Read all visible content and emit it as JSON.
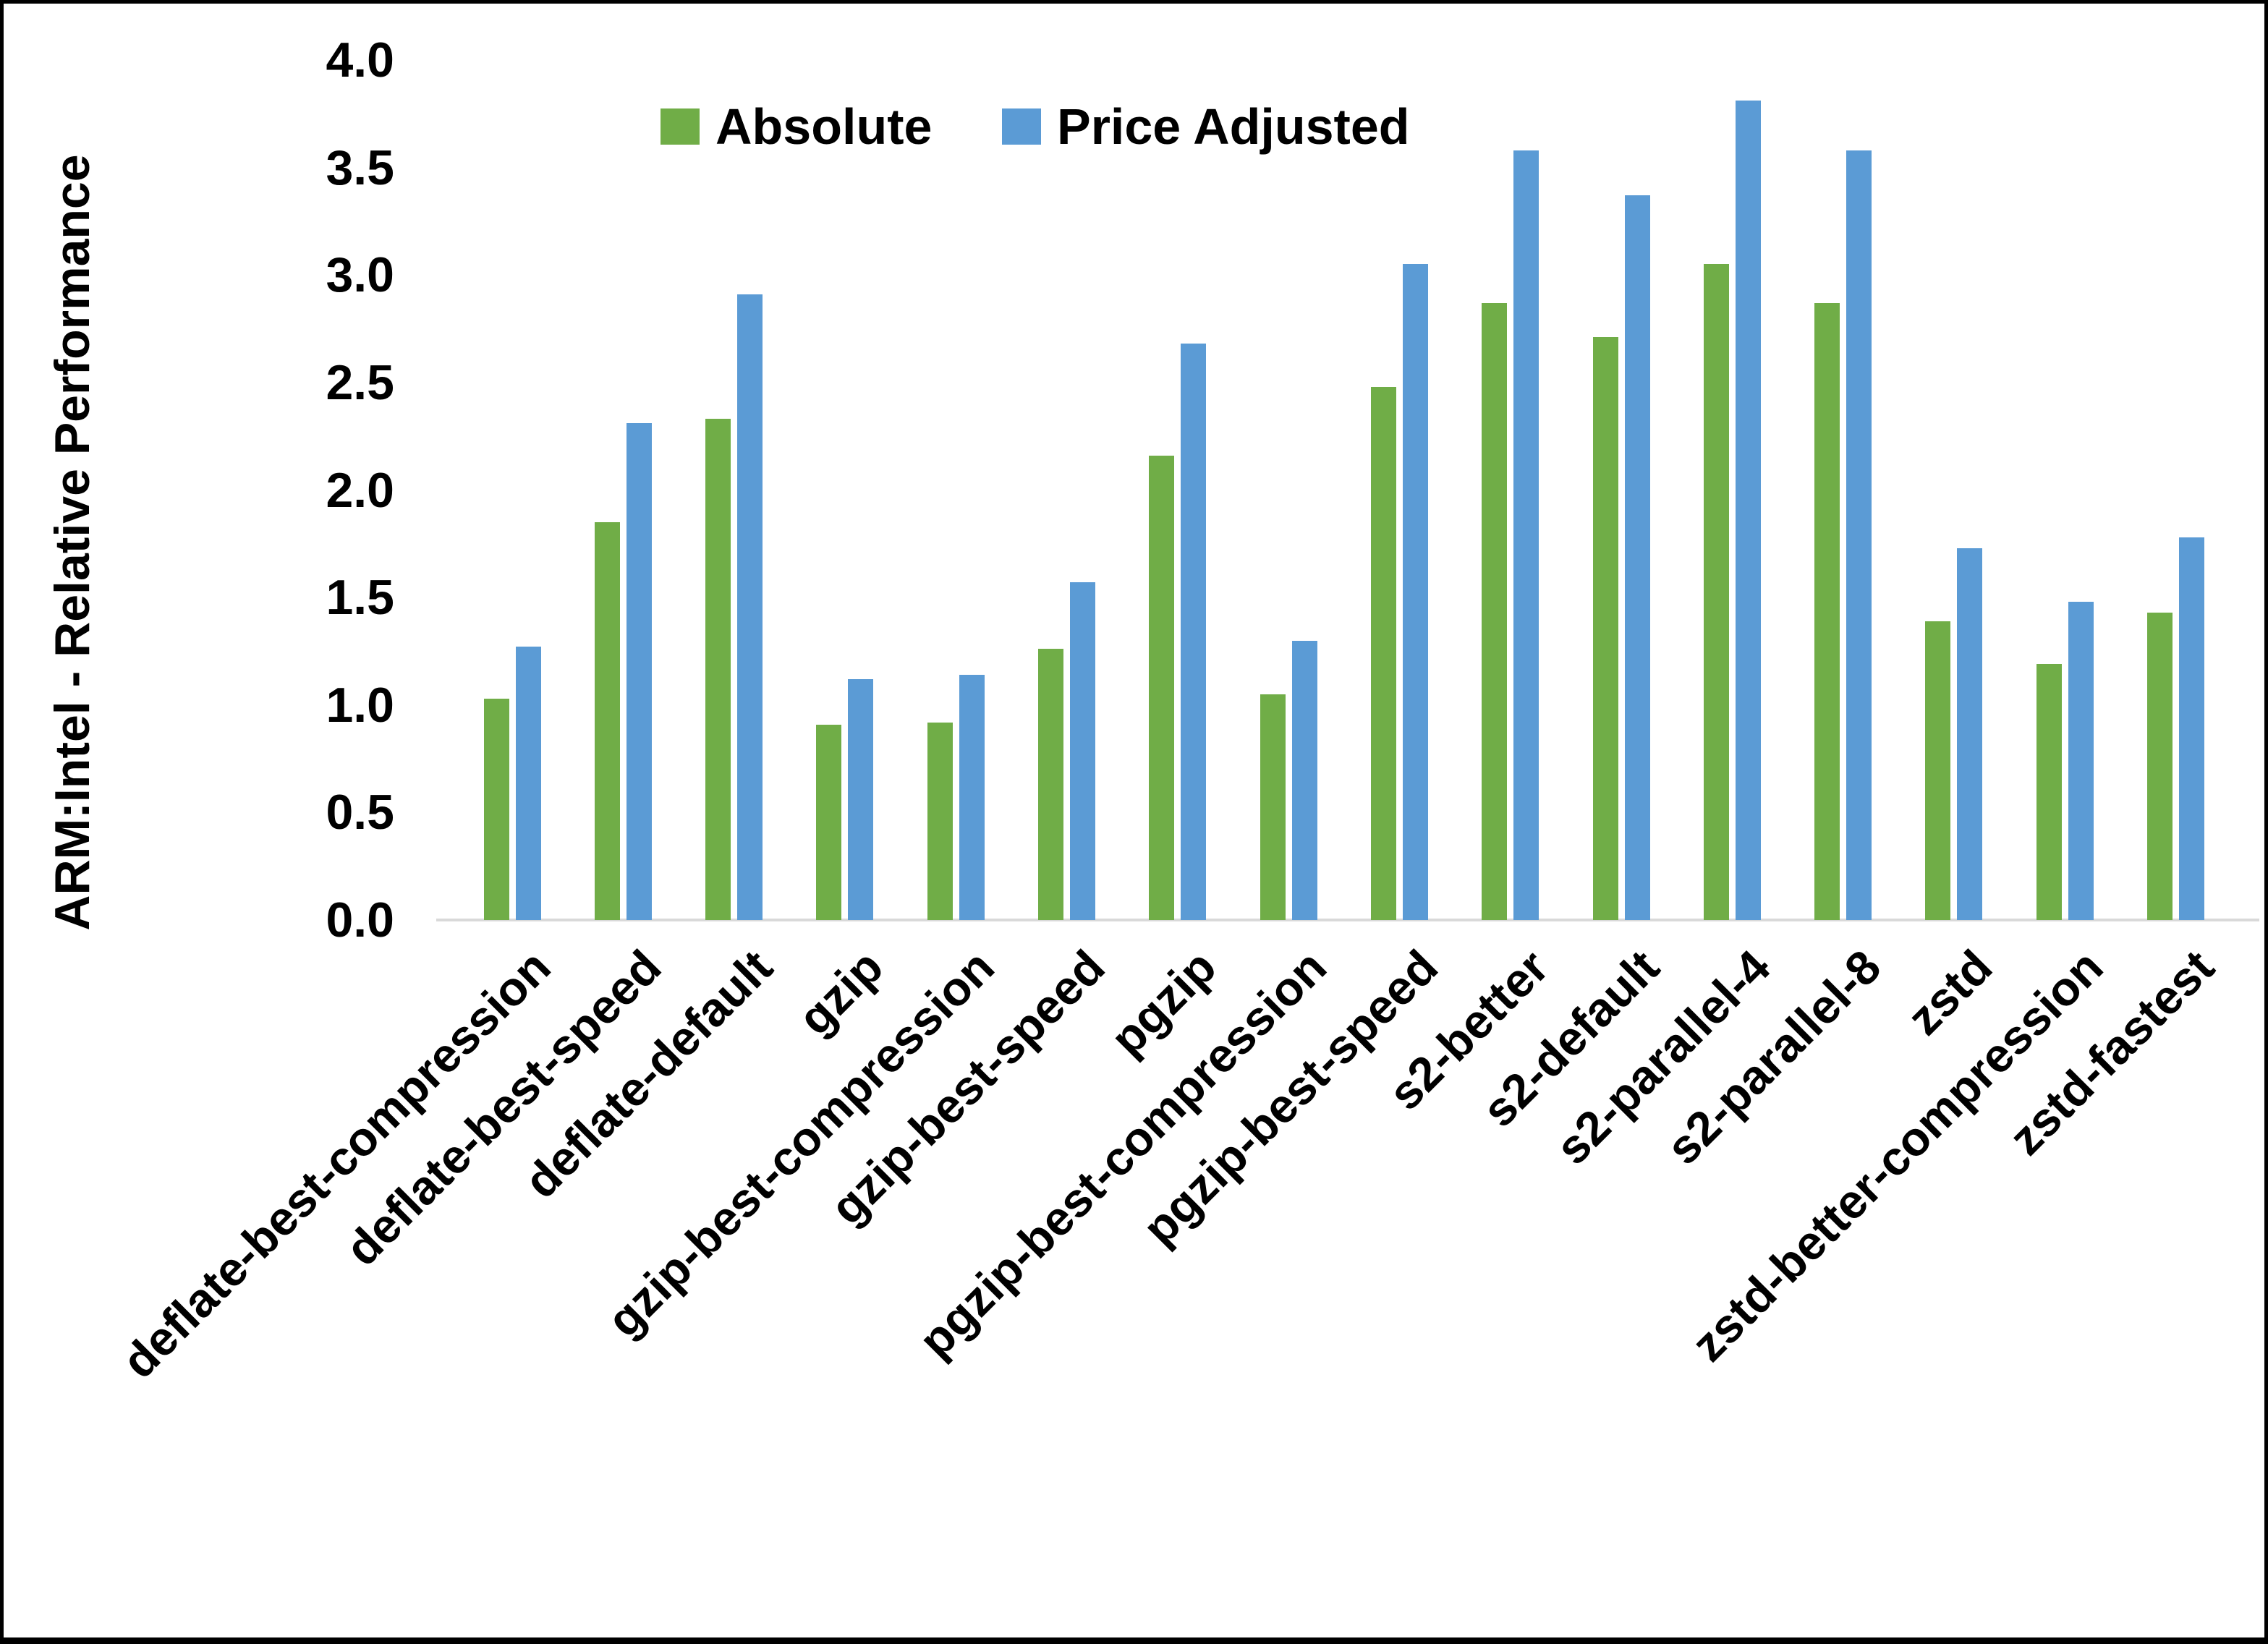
{
  "chart_data": {
    "type": "bar",
    "title": "",
    "ylabel": "ARM:Intel - Relative Performance",
    "xlabel": "",
    "ylim": [
      0.0,
      4.0
    ],
    "ytick_step": 0.5,
    "ytick_labels": [
      "0.0",
      "0.5",
      "1.0",
      "1.5",
      "2.0",
      "2.5",
      "3.0",
      "3.5",
      "4.0"
    ],
    "grid": "off",
    "legend_position": "top-center",
    "categories": [
      "deflate-best-compression",
      "deflate-best-speed",
      "deflate-default",
      "gzip",
      "gzip-best-compression",
      "gzip-best-speed",
      "pgzip",
      "pgzip-best-compression",
      "pgzip-best-speed",
      "s2-better",
      "s2-default",
      "s2-parallel-4",
      "s2-parallel-8",
      "zstd",
      "zstd-better-compression",
      "zstd-fastest"
    ],
    "series": [
      {
        "name": "Absolute",
        "color": "#70AD47",
        "values": [
          1.03,
          1.85,
          2.33,
          0.91,
          0.92,
          1.26,
          2.16,
          1.05,
          2.48,
          2.87,
          2.71,
          3.05,
          2.87,
          1.39,
          1.19,
          1.43
        ]
      },
      {
        "name": "Price Adjusted",
        "color": "#5B9BD5",
        "values": [
          1.27,
          2.31,
          2.91,
          1.12,
          1.14,
          1.57,
          2.68,
          1.3,
          3.05,
          3.58,
          3.37,
          3.81,
          3.58,
          1.73,
          1.48,
          1.78
        ]
      }
    ],
    "axis_line_color": "#D9D9D9",
    "text_color": "#000000",
    "background": "#FFFFFF",
    "border_color": "#000000"
  }
}
